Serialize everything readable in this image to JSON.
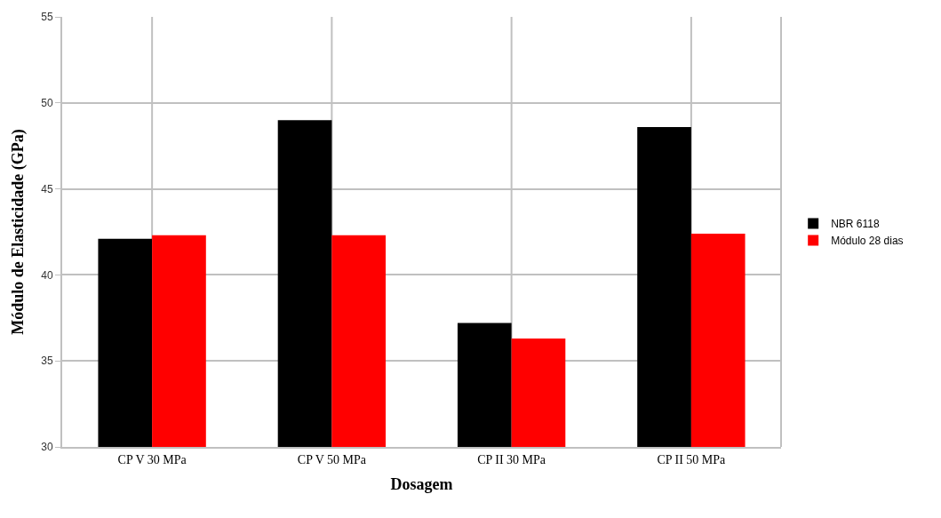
{
  "chart_data": {
    "type": "bar",
    "xlabel": "Dosagem",
    "ylabel": "Módulo de Elasticidade (GPa)",
    "categories": [
      "CP V 30 MPa",
      "CP V 50 MPa",
      "CP II 30 MPa",
      "CP II 50 MPa"
    ],
    "series": [
      {
        "name": "NBR 6118",
        "color": "#000000",
        "values": [
          42.1,
          49.0,
          37.2,
          48.6
        ]
      },
      {
        "name": "Módulo 28 dias",
        "color": "#ff0000",
        "values": [
          42.3,
          42.3,
          36.3,
          42.4
        ]
      }
    ],
    "ylim": [
      30,
      55
    ],
    "yticks": [
      30,
      35,
      40,
      45,
      50,
      55
    ],
    "grid": true,
    "legend": "right"
  }
}
